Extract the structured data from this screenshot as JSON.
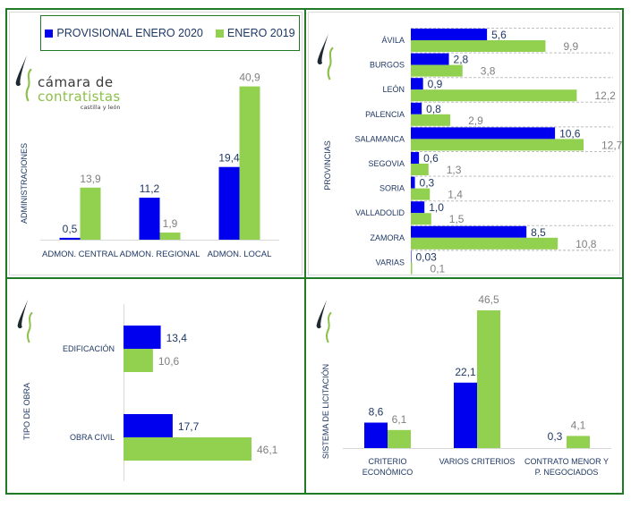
{
  "colors": {
    "series2020": "#0000ee",
    "series2019": "#92d050",
    "label2020": "#1f3864",
    "label2019": "#808080",
    "axis_text": "#1f3864",
    "frame": "#217a25"
  },
  "legend": {
    "items": [
      "PROVISIONAL ENERO 2020",
      "ENERO 2019"
    ]
  },
  "logo": {
    "line1": "cámara de",
    "line2": "contratistas",
    "line3": "castilla y león"
  },
  "chart_data": [
    {
      "id": "administraciones",
      "type": "bar",
      "orientation": "vertical",
      "ylabel": "ADMINISTRACIONES",
      "categories": [
        "ADMON. CENTRAL",
        "ADMON. REGIONAL",
        "ADMON. LOCAL"
      ],
      "series": [
        {
          "name": "PROVISIONAL ENERO 2020",
          "values": [
            0.5,
            11.2,
            19.4
          ],
          "labels": [
            "0,5",
            "11,2",
            "19,4"
          ]
        },
        {
          "name": "ENERO 2019",
          "values": [
            13.9,
            1.9,
            40.9
          ],
          "labels": [
            "13,9",
            "1,9",
            "40,9"
          ]
        }
      ],
      "ylim": [
        0,
        42
      ]
    },
    {
      "id": "provincias",
      "type": "bar",
      "orientation": "horizontal",
      "ylabel": "PROVINCIAS",
      "categories": [
        "ÁVILA",
        "BURGOS",
        "LEÓN",
        "PALENCIA",
        "SALAMANCA",
        "SEGOVIA",
        "SORIA",
        "VALLADOLID",
        "ZAMORA",
        "VARIAS"
      ],
      "series": [
        {
          "name": "PROVISIONAL ENERO 2020",
          "values": [
            5.6,
            2.8,
            0.9,
            0.8,
            10.6,
            0.6,
            0.3,
            1.0,
            8.5,
            0.03
          ],
          "labels": [
            "5,6",
            "2,8",
            "0,9",
            "0,8",
            "10,6",
            "0,6",
            "0,3",
            "1,0",
            "8,5",
            "0,03"
          ]
        },
        {
          "name": "ENERO 2019",
          "values": [
            9.9,
            3.8,
            12.2,
            2.9,
            12.7,
            1.3,
            1.4,
            1.5,
            10.8,
            0.1
          ],
          "labels": [
            "9,9",
            "3,8",
            "12,2",
            "2,9",
            "12,7",
            "1,3",
            "1,4",
            "1,5",
            "10,8",
            "0,1"
          ]
        }
      ],
      "xlim": [
        0,
        14
      ],
      "grid": true
    },
    {
      "id": "tipo-obra",
      "type": "bar",
      "orientation": "horizontal",
      "ylabel": "TIPO DE OBRA",
      "categories": [
        "EDIFICACIÓN",
        "OBRA CIVIL"
      ],
      "series": [
        {
          "name": "PROVISIONAL ENERO 2020",
          "values": [
            13.4,
            17.7
          ],
          "labels": [
            "13,4",
            "17,7"
          ]
        },
        {
          "name": "ENERO 2019",
          "values": [
            10.6,
            46.1
          ],
          "labels": [
            "10,6",
            "46,1"
          ]
        }
      ],
      "xlim": [
        0,
        50
      ]
    },
    {
      "id": "sistema-licitacion",
      "type": "bar",
      "orientation": "vertical",
      "ylabel": "SISTEMA DE LICITACIÓN",
      "categories": [
        [
          "CRITERIO",
          "ECONÓMICO"
        ],
        [
          "VARIOS CRITERIOS"
        ],
        [
          "CONTRATO MENOR Y",
          "P. NEGOCIADOS"
        ]
      ],
      "series": [
        {
          "name": "PROVISIONAL ENERO 2020",
          "values": [
            8.6,
            22.1,
            0.3
          ],
          "labels": [
            "8,6",
            "22,1",
            "0,3"
          ]
        },
        {
          "name": "ENERO 2019",
          "values": [
            6.1,
            46.5,
            4.1
          ],
          "labels": [
            "6,1",
            "46,5",
            "4,1"
          ]
        }
      ],
      "ylim": [
        0,
        48
      ]
    }
  ]
}
